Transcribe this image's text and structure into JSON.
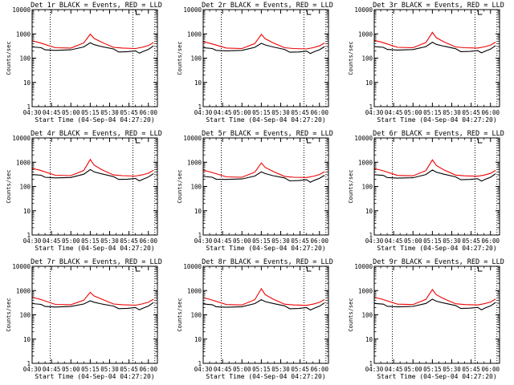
{
  "chart_data": [
    {
      "type": "line",
      "title": "Det 1r BLACK = Events, RED = LLD",
      "ylabel": "Counts/sec",
      "xlabel": "Start Time (04-Sep-04 04:27:20)",
      "ylim": [
        1,
        10000
      ],
      "yscale": "log",
      "x_ticks": [
        "04:30",
        "04:45",
        "05:00",
        "05:15",
        "05:30",
        "05:45",
        "06:00"
      ],
      "y_ticks": [
        "1",
        "10",
        "100",
        "1000",
        "10000"
      ],
      "vlines": [
        "04:44",
        "05:48",
        "06:05"
      ],
      "series": [
        {
          "color": "#000000",
          "times": [
            "04:30",
            "04:37",
            "04:40",
            "04:48",
            "05:00",
            "05:10",
            "05:15",
            "05:18",
            "05:24",
            "05:33",
            "05:37",
            "05:44",
            "05:50",
            "05:53",
            "05:56",
            "06:00",
            "06:04"
          ],
          "values": [
            290,
            270,
            220,
            210,
            220,
            290,
            430,
            360,
            300,
            240,
            180,
            185,
            200,
            160,
            190,
            230,
            320
          ]
        },
        {
          "color": "#ee0000",
          "times": [
            "04:30",
            "04:36",
            "04:48",
            "05:00",
            "05:10",
            "05:15",
            "05:18",
            "05:24",
            "05:33",
            "05:40",
            "05:50",
            "05:55",
            "06:00",
            "06:04"
          ],
          "values": [
            520,
            430,
            270,
            260,
            420,
            980,
            650,
            450,
            280,
            260,
            250,
            280,
            330,
            440
          ]
        }
      ]
    },
    {
      "type": "line",
      "title": "Det 2r BLACK = Events, RED = LLD",
      "ylabel": "Counts/sec",
      "xlabel": "Start Time (04-Sep-04 04:27:20)",
      "ylim": [
        1,
        10000
      ],
      "yscale": "log",
      "x_ticks": [
        "04:30",
        "04:45",
        "05:00",
        "05:15",
        "05:30",
        "05:45",
        "06:00"
      ],
      "y_ticks": [
        "1",
        "10",
        "100",
        "1000",
        "10000"
      ],
      "vlines": [
        "04:44",
        "05:48",
        "06:05"
      ],
      "series": [
        {
          "color": "#000000",
          "times": [
            "04:30",
            "04:37",
            "04:40",
            "04:48",
            "05:00",
            "05:10",
            "05:15",
            "05:18",
            "05:24",
            "05:33",
            "05:37",
            "05:44",
            "05:50",
            "05:53",
            "05:56",
            "06:00",
            "06:04"
          ],
          "values": [
            270,
            250,
            210,
            200,
            210,
            280,
            410,
            350,
            290,
            230,
            175,
            180,
            195,
            155,
            185,
            220,
            300
          ]
        },
        {
          "color": "#ee0000",
          "times": [
            "04:30",
            "04:36",
            "04:48",
            "05:00",
            "05:10",
            "05:15",
            "05:18",
            "05:24",
            "05:33",
            "05:40",
            "05:50",
            "05:55",
            "06:00",
            "06:04"
          ],
          "values": [
            480,
            400,
            260,
            250,
            400,
            950,
            630,
            430,
            270,
            250,
            240,
            270,
            320,
            420
          ]
        }
      ]
    },
    {
      "type": "line",
      "title": "Det 3r BLACK = Events, RED = LLD",
      "ylabel": "Counts/sec",
      "xlabel": "Start Time (04-Sep-04 04:27:20)",
      "ylim": [
        1,
        10000
      ],
      "yscale": "log",
      "x_ticks": [
        "04:30",
        "04:45",
        "05:00",
        "05:15",
        "05:30",
        "05:45",
        "06:00"
      ],
      "y_ticks": [
        "1",
        "10",
        "100",
        "1000",
        "10000"
      ],
      "vlines": [
        "04:44",
        "05:48",
        "06:05"
      ],
      "series": [
        {
          "color": "#000000",
          "times": [
            "04:30",
            "04:37",
            "04:40",
            "04:48",
            "05:00",
            "05:10",
            "05:15",
            "05:18",
            "05:24",
            "05:33",
            "05:37",
            "05:44",
            "05:50",
            "05:53",
            "05:56",
            "06:00",
            "06:04"
          ],
          "values": [
            300,
            280,
            230,
            215,
            225,
            300,
            450,
            370,
            310,
            245,
            185,
            190,
            205,
            165,
            195,
            235,
            330
          ]
        },
        {
          "color": "#ee0000",
          "times": [
            "04:30",
            "04:36",
            "04:48",
            "05:00",
            "05:10",
            "05:15",
            "05:18",
            "05:24",
            "05:33",
            "05:40",
            "05:50",
            "05:55",
            "06:00",
            "06:04"
          ],
          "values": [
            540,
            450,
            280,
            270,
            440,
            1150,
            700,
            470,
            290,
            270,
            260,
            290,
            340,
            460
          ]
        }
      ]
    },
    {
      "type": "line",
      "title": "Det 4r BLACK = Events, RED = LLD",
      "ylabel": "Counts/sec",
      "xlabel": "Start Time (04-Sep-04 04:27:20)",
      "ylim": [
        1,
        10000
      ],
      "yscale": "log",
      "x_ticks": [
        "04:30",
        "04:45",
        "05:00",
        "05:15",
        "05:30",
        "05:45",
        "06:00"
      ],
      "y_ticks": [
        "1",
        "10",
        "100",
        "1000",
        "10000"
      ],
      "vlines": [
        "04:44",
        "05:48",
        "06:05"
      ],
      "series": [
        {
          "color": "#000000",
          "times": [
            "04:30",
            "04:37",
            "04:40",
            "04:48",
            "05:00",
            "05:10",
            "05:15",
            "05:18",
            "05:24",
            "05:33",
            "05:37",
            "05:44",
            "05:50",
            "05:53",
            "05:56",
            "06:00",
            "06:04"
          ],
          "values": [
            310,
            290,
            240,
            225,
            235,
            320,
            500,
            400,
            330,
            255,
            195,
            200,
            215,
            170,
            200,
            245,
            340
          ]
        },
        {
          "color": "#ee0000",
          "times": [
            "04:30",
            "04:36",
            "04:48",
            "05:00",
            "05:10",
            "05:15",
            "05:18",
            "05:24",
            "05:33",
            "05:40",
            "05:50",
            "05:55",
            "06:00",
            "06:04"
          ],
          "values": [
            560,
            470,
            290,
            280,
            460,
            1300,
            760,
            490,
            300,
            280,
            270,
            300,
            350,
            470
          ]
        }
      ]
    },
    {
      "type": "line",
      "title": "Det 5r BLACK = Events, RED = LLD",
      "ylabel": "Counts/sec",
      "xlabel": "Start Time (04-Sep-04 04:27:20)",
      "ylim": [
        1,
        10000
      ],
      "yscale": "log",
      "x_ticks": [
        "04:30",
        "04:45",
        "05:00",
        "05:15",
        "05:30",
        "05:45",
        "06:00"
      ],
      "y_ticks": [
        "1",
        "10",
        "100",
        "1000",
        "10000"
      ],
      "vlines": [
        "04:44",
        "05:48",
        "06:05"
      ],
      "series": [
        {
          "color": "#000000",
          "times": [
            "04:30",
            "04:37",
            "04:40",
            "04:48",
            "05:00",
            "05:10",
            "05:15",
            "05:18",
            "05:24",
            "05:33",
            "05:37",
            "05:44",
            "05:50",
            "05:53",
            "05:56",
            "06:00",
            "06:04"
          ],
          "values": [
            260,
            240,
            200,
            195,
            205,
            270,
            400,
            340,
            280,
            225,
            170,
            175,
            190,
            150,
            180,
            215,
            290
          ]
        },
        {
          "color": "#ee0000",
          "times": [
            "04:30",
            "04:36",
            "04:48",
            "05:00",
            "05:10",
            "05:15",
            "05:18",
            "05:24",
            "05:33",
            "05:40",
            "05:50",
            "05:55",
            "06:00",
            "06:04"
          ],
          "values": [
            470,
            390,
            250,
            240,
            390,
            930,
            610,
            420,
            260,
            240,
            235,
            260,
            310,
            410
          ]
        }
      ]
    },
    {
      "type": "line",
      "title": "Det 6r BLACK = Events, RED = LLD",
      "ylabel": "Counts/sec",
      "xlabel": "Start Time (04-Sep-04 04:27:20)",
      "ylim": [
        1,
        10000
      ],
      "yscale": "log",
      "x_ticks": [
        "04:30",
        "04:45",
        "05:00",
        "05:15",
        "05:30",
        "05:45",
        "06:00"
      ],
      "y_ticks": [
        "1",
        "10",
        "100",
        "1000",
        "10000"
      ],
      "vlines": [
        "04:44",
        "05:48",
        "06:05"
      ],
      "series": [
        {
          "color": "#000000",
          "times": [
            "04:30",
            "04:37",
            "04:40",
            "04:48",
            "05:00",
            "05:10",
            "05:15",
            "05:18",
            "05:24",
            "05:33",
            "05:37",
            "05:44",
            "05:50",
            "05:53",
            "05:56",
            "06:00",
            "06:04"
          ],
          "values": [
            305,
            285,
            235,
            220,
            230,
            310,
            480,
            390,
            320,
            250,
            190,
            195,
            210,
            168,
            198,
            240,
            335
          ]
        },
        {
          "color": "#ee0000",
          "times": [
            "04:30",
            "04:36",
            "04:48",
            "05:00",
            "05:10",
            "05:15",
            "05:18",
            "05:24",
            "05:33",
            "05:40",
            "05:50",
            "05:55",
            "06:00",
            "06:04"
          ],
          "values": [
            550,
            460,
            285,
            275,
            450,
            1250,
            740,
            480,
            295,
            275,
            265,
            295,
            345,
            465
          ]
        }
      ]
    },
    {
      "type": "line",
      "title": "Det 7r BLACK = Events, RED = LLD",
      "ylabel": "Counts/sec",
      "xlabel": "Start Time (04-Sep-04 04:27:20)",
      "ylim": [
        1,
        10000
      ],
      "yscale": "log",
      "x_ticks": [
        "04:30",
        "04:45",
        "05:00",
        "05:15",
        "05:30",
        "05:45",
        "06:00"
      ],
      "y_ticks": [
        "1",
        "10",
        "100",
        "1000",
        "10000"
      ],
      "vlines": [
        "04:44",
        "05:48",
        "06:05"
      ],
      "series": [
        {
          "color": "#000000",
          "times": [
            "04:30",
            "04:37",
            "04:40",
            "04:48",
            "05:00",
            "05:10",
            "05:15",
            "05:18",
            "05:24",
            "05:33",
            "05:37",
            "05:44",
            "05:50",
            "05:53",
            "05:56",
            "06:00",
            "06:04"
          ],
          "values": [
            290,
            270,
            220,
            210,
            220,
            280,
            380,
            330,
            280,
            230,
            180,
            185,
            200,
            160,
            190,
            230,
            320
          ]
        },
        {
          "color": "#ee0000",
          "times": [
            "04:30",
            "04:36",
            "04:48",
            "05:00",
            "05:10",
            "05:15",
            "05:18",
            "05:24",
            "05:33",
            "05:40",
            "05:50",
            "05:55",
            "06:00",
            "06:04"
          ],
          "values": [
            530,
            440,
            270,
            260,
            400,
            850,
            600,
            440,
            280,
            260,
            250,
            280,
            330,
            440
          ]
        }
      ]
    },
    {
      "type": "line",
      "title": "Det 8r BLACK = Events, RED = LLD",
      "ylabel": "Counts/sec",
      "xlabel": "Start Time (04-Sep-04 04:27:20)",
      "ylim": [
        1,
        10000
      ],
      "yscale": "log",
      "x_ticks": [
        "04:30",
        "04:45",
        "05:00",
        "05:15",
        "05:30",
        "05:45",
        "06:00"
      ],
      "y_ticks": [
        "1",
        "10",
        "100",
        "1000",
        "10000"
      ],
      "vlines": [
        "04:44",
        "05:48",
        "06:05"
      ],
      "series": [
        {
          "color": "#000000",
          "times": [
            "04:30",
            "04:37",
            "04:40",
            "04:48",
            "05:00",
            "05:10",
            "05:15",
            "05:18",
            "05:24",
            "05:33",
            "05:37",
            "05:44",
            "05:50",
            "05:53",
            "05:56",
            "06:00",
            "06:04"
          ],
          "values": [
            280,
            260,
            215,
            205,
            215,
            290,
            420,
            350,
            295,
            235,
            178,
            182,
            198,
            158,
            188,
            225,
            310
          ]
        },
        {
          "color": "#ee0000",
          "times": [
            "04:30",
            "04:36",
            "04:48",
            "05:00",
            "05:10",
            "05:15",
            "05:18",
            "05:24",
            "05:33",
            "05:40",
            "05:50",
            "05:55",
            "06:00",
            "06:04"
          ],
          "values": [
            510,
            420,
            265,
            255,
            420,
            1200,
            680,
            450,
            275,
            255,
            245,
            275,
            325,
            430
          ]
        }
      ]
    },
    {
      "type": "line",
      "title": "Det 9r BLACK = Events, RED = LLD",
      "ylabel": "Counts/sec",
      "xlabel": "Start Time (04-Sep-04 04:27:20)",
      "ylim": [
        1,
        10000
      ],
      "yscale": "log",
      "x_ticks": [
        "04:30",
        "04:45",
        "05:00",
        "05:15",
        "05:30",
        "05:45",
        "06:00"
      ],
      "y_ticks": [
        "1",
        "10",
        "100",
        "1000",
        "10000"
      ],
      "vlines": [
        "04:44",
        "05:48",
        "06:05"
      ],
      "series": [
        {
          "color": "#000000",
          "times": [
            "04:30",
            "04:37",
            "04:40",
            "04:48",
            "05:00",
            "05:10",
            "05:15",
            "05:18",
            "05:24",
            "05:33",
            "05:37",
            "05:44",
            "05:50",
            "05:53",
            "05:56",
            "06:00",
            "06:04"
          ],
          "values": [
            295,
            275,
            225,
            212,
            222,
            295,
            440,
            365,
            305,
            242,
            182,
            188,
            202,
            162,
            192,
            232,
            325
          ]
        },
        {
          "color": "#ee0000",
          "times": [
            "04:30",
            "04:36",
            "04:48",
            "05:00",
            "05:10",
            "05:15",
            "05:18",
            "05:24",
            "05:33",
            "05:40",
            "05:50",
            "05:55",
            "06:00",
            "06:04"
          ],
          "values": [
            530,
            440,
            275,
            265,
            430,
            1100,
            670,
            460,
            285,
            265,
            255,
            285,
            335,
            450
          ]
        }
      ]
    }
  ]
}
